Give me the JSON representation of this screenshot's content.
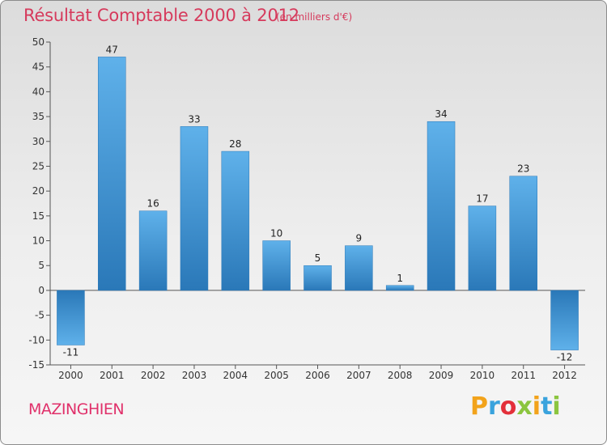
{
  "chart_data": {
    "type": "bar",
    "title": "Résultat Comptable 2000 à 2012",
    "subtitle": "(en milliers d'€)",
    "categories": [
      "2000",
      "2001",
      "2002",
      "2003",
      "2004",
      "2005",
      "2006",
      "2007",
      "2008",
      "2009",
      "2010",
      "2011",
      "2012"
    ],
    "values": [
      -11,
      47,
      16,
      33,
      28,
      10,
      5,
      9,
      1,
      34,
      17,
      23,
      -12
    ],
    "data_labels": [
      "-11",
      "47",
      "16",
      "33",
      "28",
      "10",
      "5",
      "9",
      "1",
      "34",
      "17",
      "23",
      "-12"
    ],
    "ylim": [
      -15,
      50
    ],
    "yticks": [
      -15,
      -10,
      -5,
      0,
      5,
      10,
      15,
      20,
      25,
      30,
      35,
      40,
      45,
      50
    ],
    "xlabel": "",
    "ylabel": "",
    "grid": false,
    "bar_color": "#3a93d6",
    "bar_color_light": "#5fb1ea",
    "bar_color_dark": "#2a78b8"
  },
  "commune": "MAZINGHIEN",
  "brand": {
    "letters": [
      "P",
      "r",
      "o",
      "x",
      "i",
      "t",
      "i"
    ],
    "colors": [
      "#f2a31b",
      "#3aa3dd",
      "#e3303a",
      "#8bc53f",
      "#f2a31b",
      "#3aa3dd",
      "#8bc53f"
    ]
  }
}
